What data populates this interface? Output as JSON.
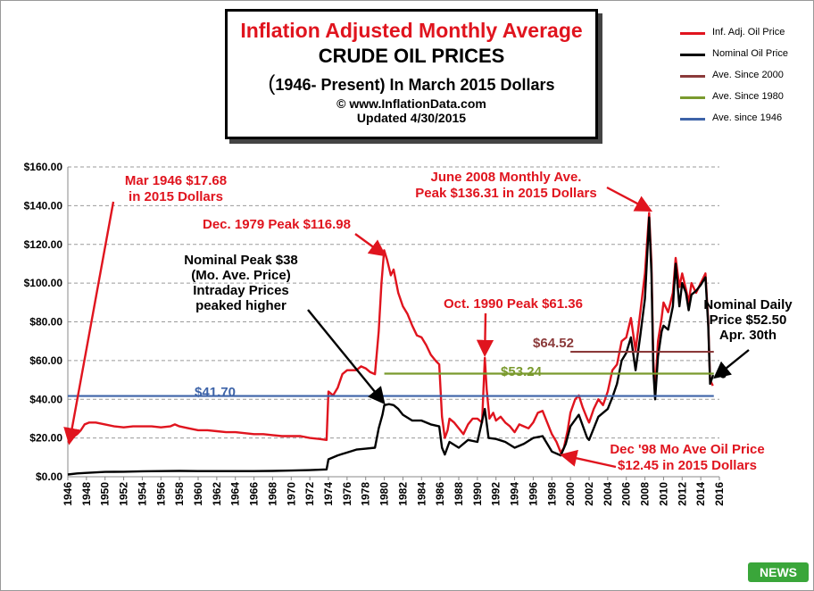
{
  "title": {
    "line1": "Inflation Adjusted Monthly Average",
    "line2": "CRUDE OIL PRICES",
    "line3_open": "(",
    "line3_text": "1946- Present) In March 2015 Dollars",
    "line4": "© www.InflationData.com",
    "line5": "Updated 4/30/2015"
  },
  "legend": [
    {
      "label": "Inf. Adj. Oil Price",
      "color": "#e0141e"
    },
    {
      "label": "Nominal Oil Price",
      "color": "#000000"
    },
    {
      "label": "Ave. Since 2000",
      "color": "#8b3a3a"
    },
    {
      "label": "Ave. Since 1980",
      "color": "#7a9a2e"
    },
    {
      "label": "Ave. since 1946",
      "color": "#3d63a8"
    }
  ],
  "logo_text": "NEWS",
  "chart_data": {
    "type": "line",
    "x_unit": "year",
    "xlim": [
      1946,
      2016
    ],
    "ylim": [
      0,
      160
    ],
    "y_ticks": [
      "$0.00",
      "$20.00",
      "$40.00",
      "$60.00",
      "$80.00",
      "$100.00",
      "$120.00",
      "$140.00",
      "$160.00"
    ],
    "x_ticks": [
      "1946",
      "1948",
      "1950",
      "1952",
      "1954",
      "1956",
      "1958",
      "1960",
      "1962",
      "1964",
      "1966",
      "1968",
      "1970",
      "1972",
      "1974",
      "1976",
      "1978",
      "1980",
      "1982",
      "1984",
      "1986",
      "1988",
      "1990",
      "1992",
      "1994",
      "1996",
      "1998",
      "2000",
      "2002",
      "2004",
      "2006",
      "2008",
      "2010",
      "2012",
      "2014",
      "2016"
    ],
    "grid": "horizontal dashed",
    "legend_position": "right of title",
    "series": [
      {
        "name": "Inf. Adj. Oil Price",
        "color": "#e0141e",
        "points": [
          [
            1946.0,
            17.68
          ],
          [
            1946.3,
            19
          ],
          [
            1946.7,
            21
          ],
          [
            1947.0,
            22
          ],
          [
            1947.4,
            24
          ],
          [
            1947.8,
            27
          ],
          [
            1948.3,
            28
          ],
          [
            1949.0,
            28
          ],
          [
            1950.0,
            27
          ],
          [
            1951.0,
            26
          ],
          [
            1952.0,
            25.5
          ],
          [
            1953.0,
            26
          ],
          [
            1954.0,
            26
          ],
          [
            1955.0,
            26
          ],
          [
            1956.0,
            25.5
          ],
          [
            1957.0,
            26
          ],
          [
            1957.5,
            27
          ],
          [
            1958.0,
            26
          ],
          [
            1959.0,
            25
          ],
          [
            1960.0,
            24
          ],
          [
            1961.0,
            24
          ],
          [
            1962.0,
            23.5
          ],
          [
            1963.0,
            23
          ],
          [
            1964.0,
            23
          ],
          [
            1965.0,
            22.5
          ],
          [
            1966.0,
            22
          ],
          [
            1967.0,
            22
          ],
          [
            1968.0,
            21.5
          ],
          [
            1969.0,
            21
          ],
          [
            1970.0,
            21
          ],
          [
            1971.0,
            21
          ],
          [
            1972.0,
            20
          ],
          [
            1973.0,
            19.5
          ],
          [
            1973.8,
            19
          ],
          [
            1974.0,
            44
          ],
          [
            1974.5,
            42
          ],
          [
            1975.0,
            46
          ],
          [
            1975.5,
            53
          ],
          [
            1976.0,
            55
          ],
          [
            1977.0,
            55
          ],
          [
            1977.5,
            57
          ],
          [
            1978.0,
            56
          ],
          [
            1978.5,
            54
          ],
          [
            1979.0,
            53
          ],
          [
            1979.4,
            75
          ],
          [
            1979.7,
            100
          ],
          [
            1979.98,
            116.98
          ],
          [
            1980.3,
            112
          ],
          [
            1980.7,
            104
          ],
          [
            1981.0,
            107
          ],
          [
            1981.5,
            95
          ],
          [
            1982.0,
            88
          ],
          [
            1982.5,
            84
          ],
          [
            1983.0,
            78
          ],
          [
            1983.5,
            73
          ],
          [
            1984.0,
            72
          ],
          [
            1984.5,
            68
          ],
          [
            1985.0,
            63
          ],
          [
            1985.5,
            60
          ],
          [
            1985.9,
            58
          ],
          [
            1986.2,
            31
          ],
          [
            1986.5,
            20
          ],
          [
            1986.8,
            24
          ],
          [
            1987.0,
            30
          ],
          [
            1987.5,
            28
          ],
          [
            1988.0,
            25
          ],
          [
            1988.5,
            22
          ],
          [
            1989.0,
            27
          ],
          [
            1989.5,
            30
          ],
          [
            1990.0,
            30
          ],
          [
            1990.5,
            28
          ],
          [
            1990.8,
            61.36
          ],
          [
            1991.0,
            45
          ],
          [
            1991.3,
            30
          ],
          [
            1991.7,
            33
          ],
          [
            1992.0,
            29
          ],
          [
            1992.5,
            31
          ],
          [
            1993.0,
            28
          ],
          [
            1993.5,
            26
          ],
          [
            1994.0,
            23
          ],
          [
            1994.5,
            27
          ],
          [
            1995.0,
            26
          ],
          [
            1995.5,
            25
          ],
          [
            1996.0,
            28
          ],
          [
            1996.5,
            33
          ],
          [
            1997.0,
            34
          ],
          [
            1997.5,
            28
          ],
          [
            1998.0,
            22
          ],
          [
            1998.5,
            18
          ],
          [
            1998.96,
            12.45
          ],
          [
            1999.3,
            15
          ],
          [
            1999.7,
            24
          ],
          [
            2000.0,
            33
          ],
          [
            2000.5,
            40
          ],
          [
            2000.9,
            42
          ],
          [
            2001.3,
            36
          ],
          [
            2001.8,
            30
          ],
          [
            2002.0,
            28
          ],
          [
            2002.5,
            35
          ],
          [
            2003.0,
            40
          ],
          [
            2003.5,
            37
          ],
          [
            2004.0,
            44
          ],
          [
            2004.5,
            55
          ],
          [
            2005.0,
            58
          ],
          [
            2005.5,
            70
          ],
          [
            2006.0,
            72
          ],
          [
            2006.5,
            82
          ],
          [
            2007.0,
            65
          ],
          [
            2007.5,
            85
          ],
          [
            2008.0,
            105
          ],
          [
            2008.45,
            136.31
          ],
          [
            2008.7,
            110
          ],
          [
            2008.9,
            60
          ],
          [
            2009.1,
            44
          ],
          [
            2009.4,
            70
          ],
          [
            2009.8,
            82
          ],
          [
            2010.0,
            90
          ],
          [
            2010.5,
            85
          ],
          [
            2011.0,
            95
          ],
          [
            2011.3,
            113
          ],
          [
            2011.7,
            98
          ],
          [
            2012.0,
            105
          ],
          [
            2012.4,
            97
          ],
          [
            2012.7,
            90
          ],
          [
            2013.0,
            100
          ],
          [
            2013.5,
            95
          ],
          [
            2014.0,
            100
          ],
          [
            2014.5,
            105
          ],
          [
            2014.8,
            80
          ],
          [
            2015.0,
            50
          ],
          [
            2015.3,
            47
          ]
        ]
      },
      {
        "name": "Nominal Oil Price",
        "color": "#000000",
        "points": [
          [
            1946.0,
            1.17
          ],
          [
            1947.0,
            1.7
          ],
          [
            1948.0,
            2.0
          ],
          [
            1950.0,
            2.5
          ],
          [
            1952.0,
            2.6
          ],
          [
            1954.0,
            2.8
          ],
          [
            1956.0,
            2.9
          ],
          [
            1958.0,
            3.0
          ],
          [
            1960.0,
            2.9
          ],
          [
            1962.0,
            2.9
          ],
          [
            1964.0,
            2.9
          ],
          [
            1966.0,
            2.9
          ],
          [
            1968.0,
            3.0
          ],
          [
            1970.0,
            3.2
          ],
          [
            1972.0,
            3.4
          ],
          [
            1973.8,
            3.8
          ],
          [
            1974.0,
            9
          ],
          [
            1975.0,
            11
          ],
          [
            1976.0,
            12.5
          ],
          [
            1977.0,
            14
          ],
          [
            1978.0,
            14.5
          ],
          [
            1979.0,
            15
          ],
          [
            1979.4,
            25
          ],
          [
            1979.8,
            32
          ],
          [
            1980.0,
            37
          ],
          [
            1980.5,
            37.5
          ],
          [
            1981.0,
            37
          ],
          [
            1981.5,
            35
          ],
          [
            1982.0,
            32
          ],
          [
            1983.0,
            29
          ],
          [
            1984.0,
            29
          ],
          [
            1985.0,
            27
          ],
          [
            1985.9,
            26
          ],
          [
            1986.2,
            15
          ],
          [
            1986.5,
            11.5
          ],
          [
            1987.0,
            18
          ],
          [
            1988.0,
            15
          ],
          [
            1989.0,
            19
          ],
          [
            1990.0,
            18
          ],
          [
            1990.8,
            35
          ],
          [
            1991.2,
            20
          ],
          [
            1992.0,
            19.5
          ],
          [
            1993.0,
            18
          ],
          [
            1994.0,
            15
          ],
          [
            1995.0,
            17
          ],
          [
            1996.0,
            20
          ],
          [
            1997.0,
            21
          ],
          [
            1998.0,
            13
          ],
          [
            1998.96,
            11
          ],
          [
            1999.5,
            17
          ],
          [
            2000.0,
            26
          ],
          [
            2000.9,
            32
          ],
          [
            2001.8,
            20
          ],
          [
            2002.0,
            19
          ],
          [
            2003.0,
            31
          ],
          [
            2004.0,
            35
          ],
          [
            2004.5,
            41
          ],
          [
            2005.0,
            48
          ],
          [
            2005.5,
            60
          ],
          [
            2006.0,
            64
          ],
          [
            2006.5,
            72
          ],
          [
            2007.0,
            55
          ],
          [
            2007.5,
            73
          ],
          [
            2008.0,
            92
          ],
          [
            2008.45,
            133.9
          ],
          [
            2008.7,
            105
          ],
          [
            2008.9,
            55
          ],
          [
            2009.1,
            40
          ],
          [
            2009.4,
            62
          ],
          [
            2009.8,
            75
          ],
          [
            2010.0,
            78
          ],
          [
            2010.5,
            76
          ],
          [
            2011.0,
            88
          ],
          [
            2011.3,
            110
          ],
          [
            2011.7,
            88
          ],
          [
            2012.0,
            100
          ],
          [
            2012.4,
            95
          ],
          [
            2012.7,
            86
          ],
          [
            2013.0,
            94
          ],
          [
            2013.5,
            96
          ],
          [
            2014.0,
            99
          ],
          [
            2014.5,
            103
          ],
          [
            2014.8,
            78
          ],
          [
            2015.0,
            48
          ],
          [
            2015.33,
            52.5
          ]
        ]
      },
      {
        "name": "Ave. Since 2000",
        "color": "#8b3a3a",
        "from": 2000,
        "to": 2015.4,
        "value": 64.52
      },
      {
        "name": "Ave. Since 1980",
        "color": "#7a9a2e",
        "from": 1980,
        "to": 2015.4,
        "value": 53.24
      },
      {
        "name": "Ave. since 1946",
        "color": "#3d63a8",
        "from": 1946,
        "to": 2015.4,
        "value": 41.7
      }
    ],
    "annotations": [
      {
        "id": "mar1946",
        "lines": [
          "Mar 1946 $17.68",
          "in 2015 Dollars"
        ],
        "color": "#e0141e"
      },
      {
        "id": "dec1979",
        "lines": [
          "Dec. 1979 Peak $116.98"
        ],
        "color": "#e0141e"
      },
      {
        "id": "nompeak",
        "lines": [
          "Nominal Peak $38",
          "(Mo. Ave. Price)",
          "Intraday Prices",
          "peaked higher"
        ],
        "color": "#000000"
      },
      {
        "id": "oct1990",
        "lines": [
          "Oct. 1990 Peak $61.36"
        ],
        "color": "#e0141e"
      },
      {
        "id": "june2008",
        "lines": [
          "June 2008 Monthly Ave.",
          "Peak $136.31 in 2015 Dollars"
        ],
        "color": "#e0141e"
      },
      {
        "id": "dec98",
        "lines": [
          "Dec '98 Mo Ave Oil  Price",
          "$12.45 in 2015 Dollars"
        ],
        "color": "#e0141e"
      },
      {
        "id": "nomdaily",
        "lines": [
          "Nominal Daily",
          "Price $52.50",
          "Apr. 30th"
        ],
        "color": "#000000"
      },
      {
        "id": "avg2000",
        "lines": [
          "$64.52"
        ],
        "color": "#8b3a3a"
      },
      {
        "id": "avg1980",
        "lines": [
          "$53.24"
        ],
        "color": "#7a9a2e"
      },
      {
        "id": "avg1946",
        "lines": [
          "$41.70"
        ],
        "color": "#3d63a8"
      }
    ]
  }
}
